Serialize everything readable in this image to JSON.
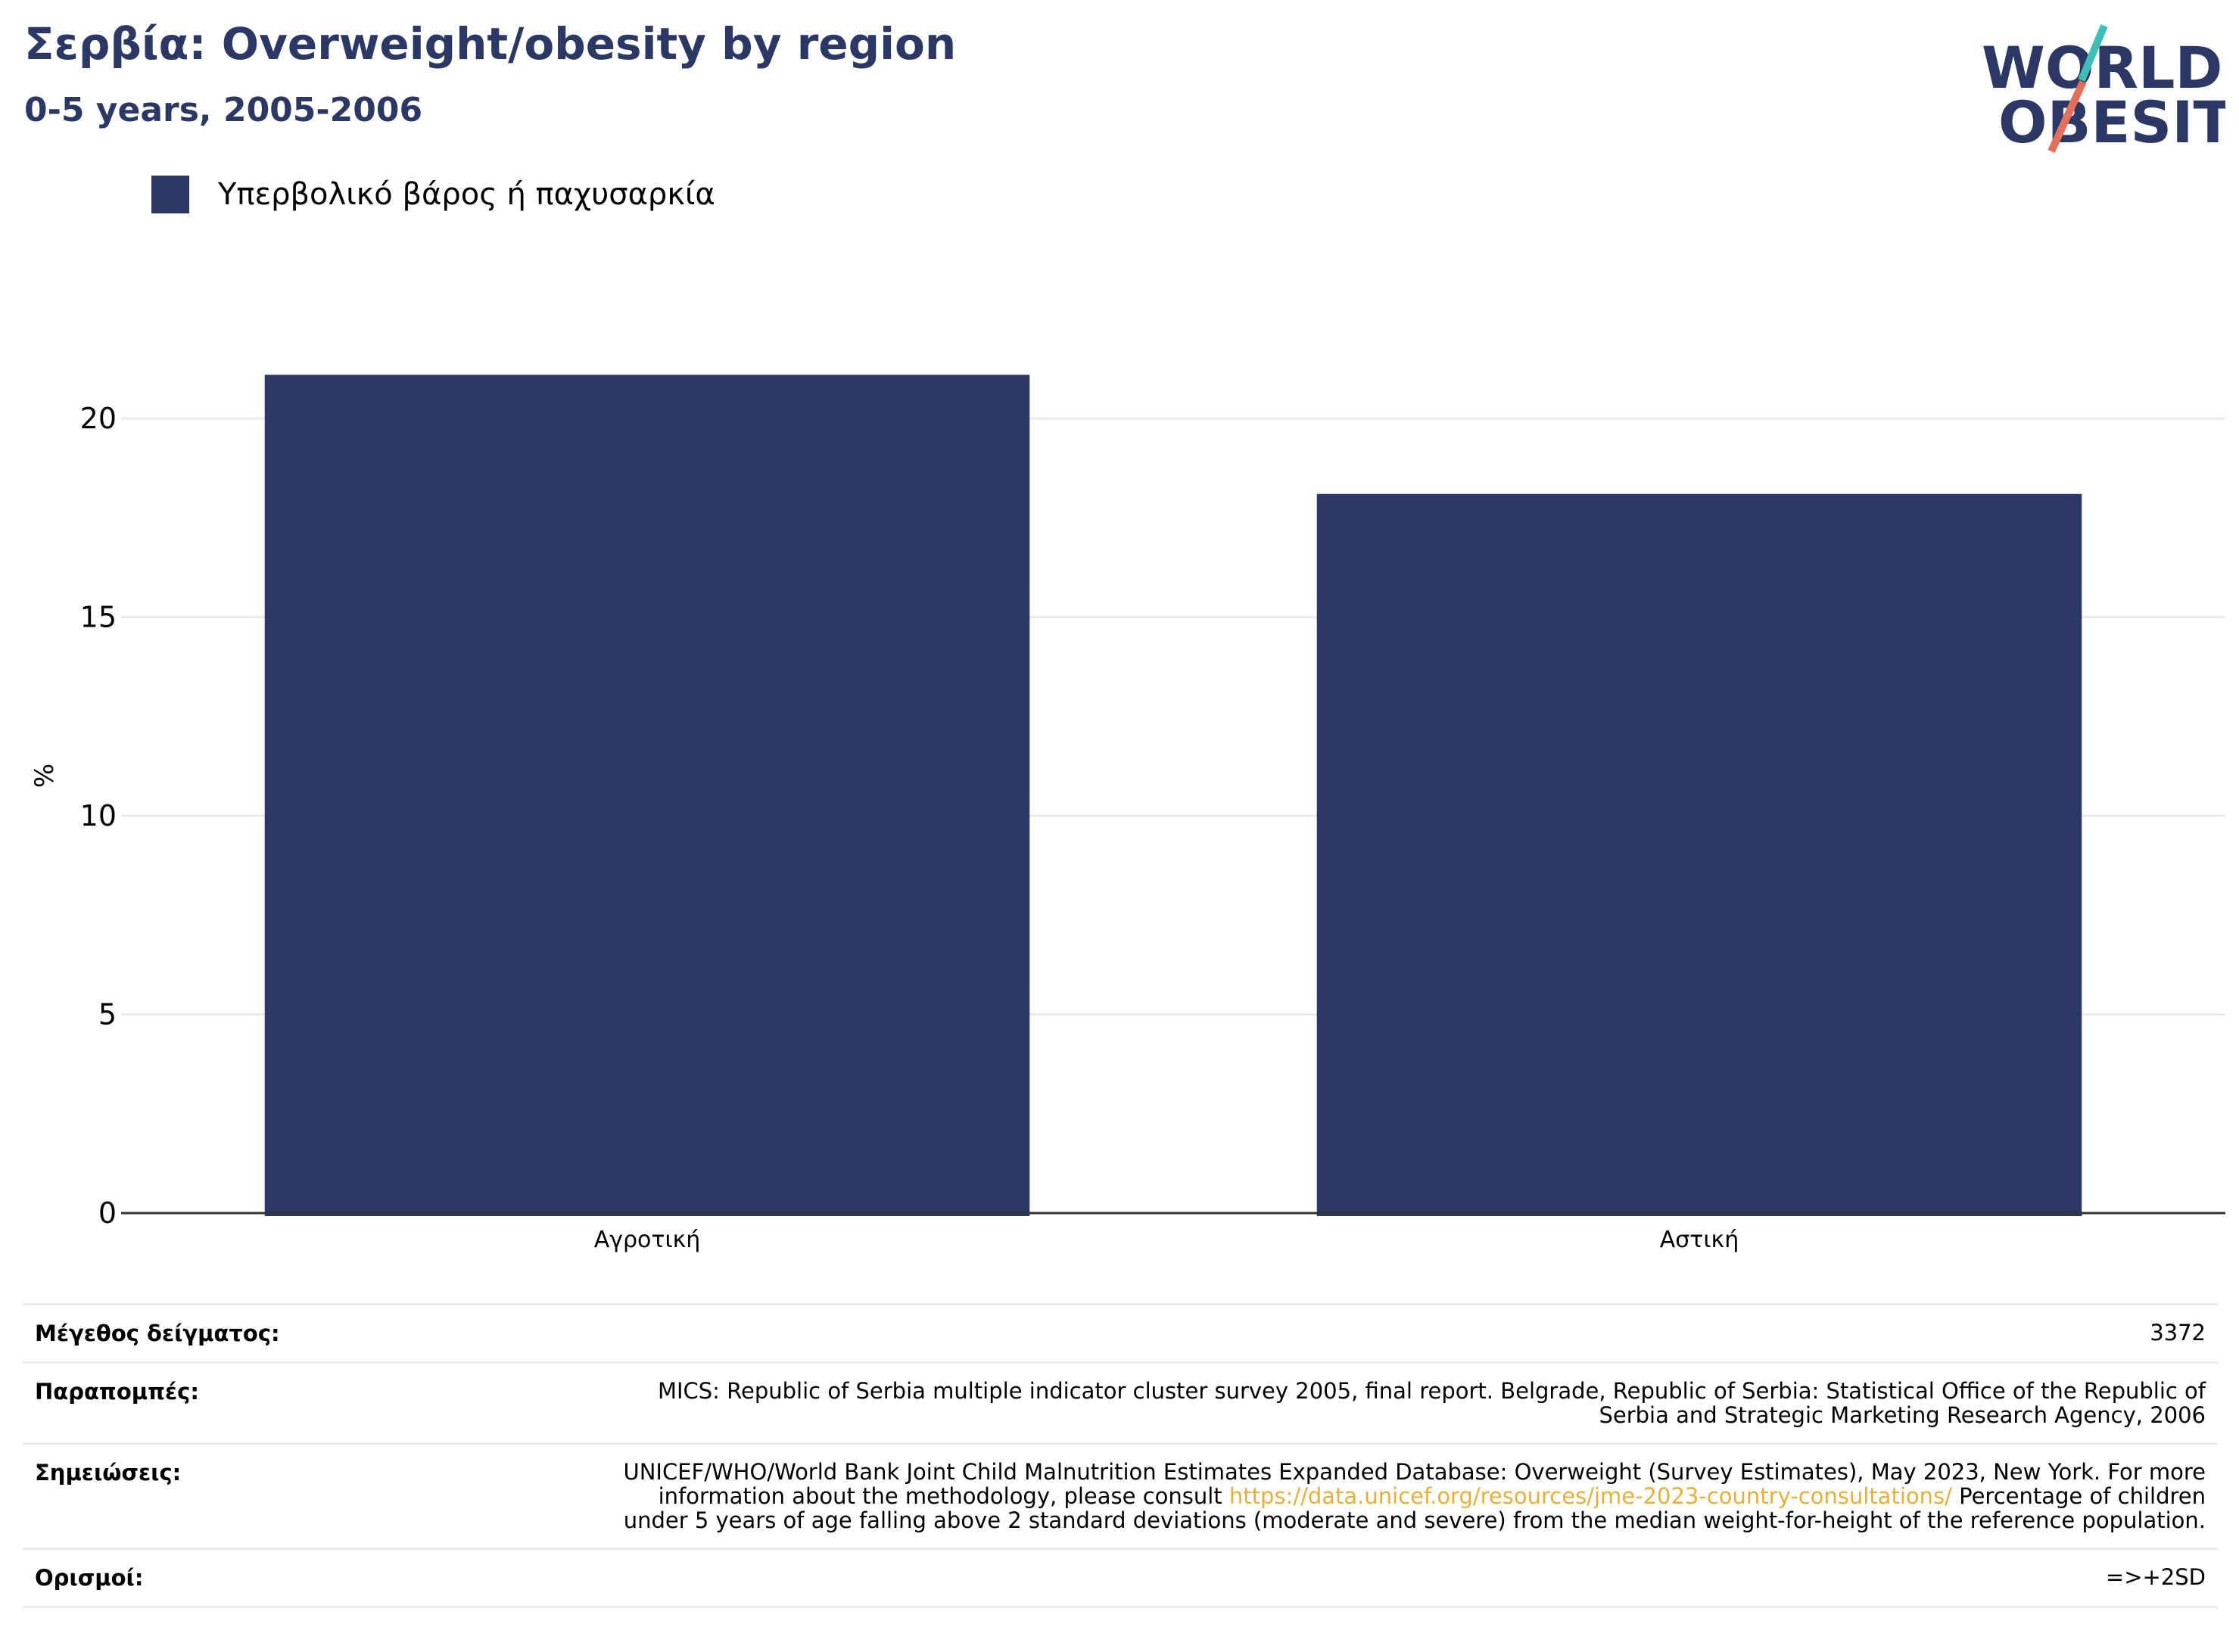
{
  "title": "Σερβία: Overweight/obesity by region",
  "subtitle": "0-5 years, 2005-2006",
  "logo": {
    "line1": "WORLD",
    "line2": "OBESITY"
  },
  "legend": {
    "label": "Υπερβολικό βάρος ή παχυσαρκία",
    "color": "#2b3764"
  },
  "chart_data": {
    "type": "bar",
    "categories": [
      "Αγροτική",
      "Αστική"
    ],
    "series": [
      {
        "name": "Υπερβολικό βάρος ή παχυσαρκία",
        "values": [
          21.1,
          18.1
        ]
      }
    ],
    "ylabel": "%",
    "xlabel": "",
    "ylim": [
      0,
      22
    ],
    "yticks": [
      0,
      5,
      10,
      15,
      20
    ],
    "grid": true,
    "legend_position": "top-left",
    "bar_color": "#2b3764"
  },
  "meta": {
    "sample_label": "Μέγεθος δείγματος:",
    "sample_value": "3372",
    "refs_label": "Παραπομπές:",
    "refs_value": "MICS: Republic of Serbia multiple indicator cluster survey 2005, final report. Belgrade, Republic of Serbia: Statistical Office of the Republic of Serbia and Strategic Marketing Research Agency, 2006",
    "notes_label": "Σημειώσεις:",
    "notes_before": "UNICEF/WHO/World Bank Joint Child Malnutrition Estimates Expanded Database: Overweight (Survey Estimates), May 2023, New York. For more information about the methodology, please consult ",
    "notes_link": "https://data.unicef.org/resources/jme-2023-country-consultations/",
    "notes_after": " Percentage of children under 5 years of age falling above 2 standard deviations (moderate and severe) from the median weight-for-height of the reference population.",
    "defs_label": "Ορισμοί:",
    "defs_value": "=>+2SD"
  }
}
